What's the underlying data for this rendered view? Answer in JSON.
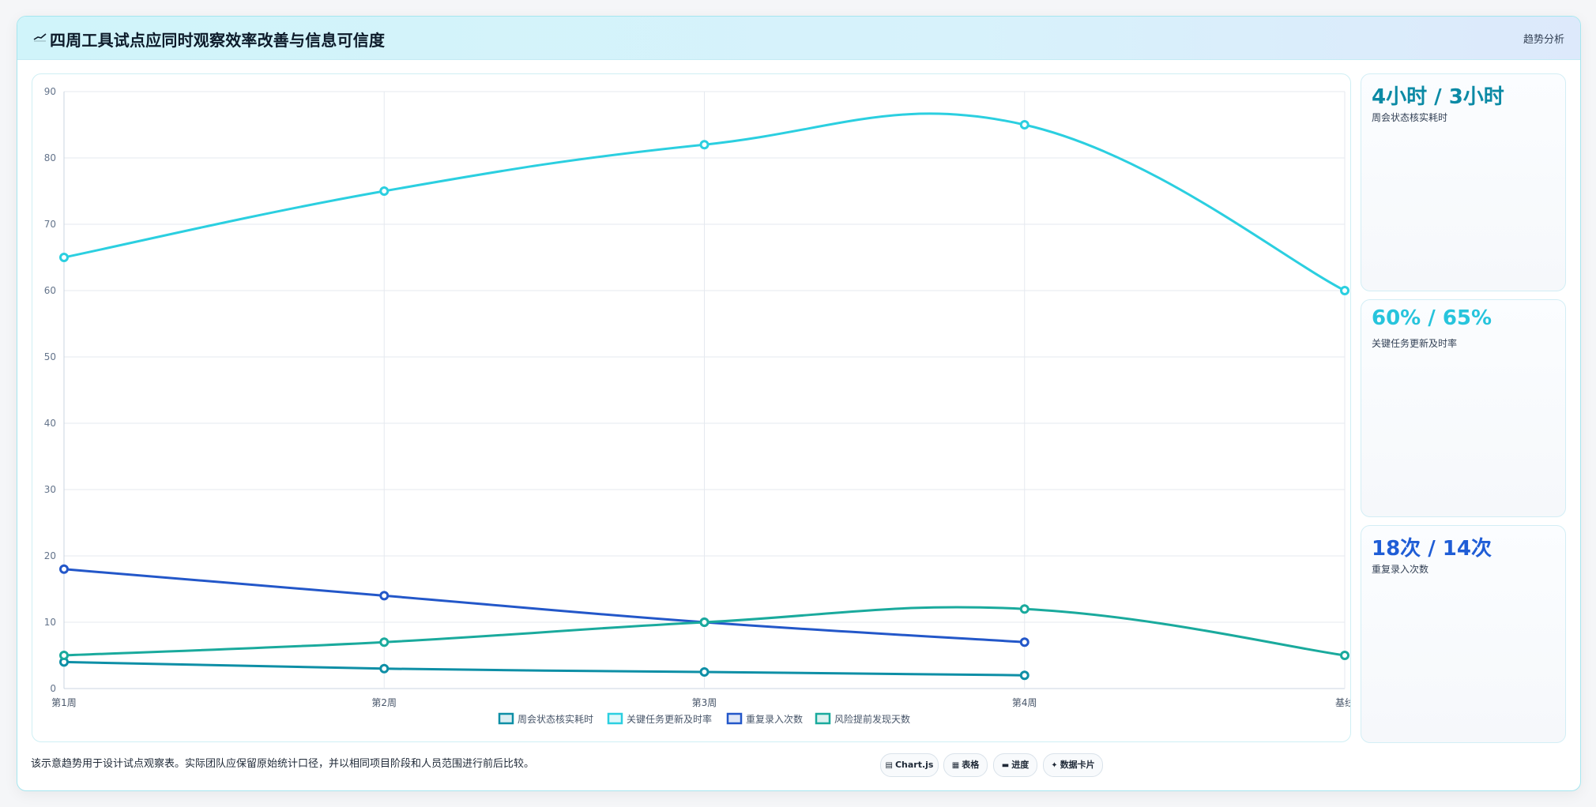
{
  "header": {
    "title": "四周工具试点应同时观察效率改善与信息可信度",
    "tag": "趋势分析"
  },
  "chart_data": {
    "type": "line",
    "categories": [
      "第1周",
      "第2周",
      "第3周",
      "第4周",
      "基线"
    ],
    "ylim": [
      0,
      90
    ],
    "yticks": [
      0,
      10,
      20,
      30,
      40,
      50,
      60,
      70,
      80,
      90
    ],
    "grid": true,
    "legend_position": "bottom",
    "series": [
      {
        "name": "周会状态核实耗时",
        "color": "#0e8fa6",
        "values": [
          4,
          3,
          2.5,
          2,
          null
        ]
      },
      {
        "name": "关键任务更新及时率",
        "color": "#2bcfe0",
        "values": [
          65,
          75,
          82,
          85,
          60
        ]
      },
      {
        "name": "重复录入次数",
        "color": "#2357c9",
        "values": [
          18,
          14,
          10,
          7,
          null
        ]
      },
      {
        "name": "风险提前发现天数",
        "color": "#1aaa9d",
        "values": [
          5,
          7,
          10,
          12,
          5
        ]
      }
    ]
  },
  "metrics": [
    {
      "value": "4小时 / 3小时",
      "label": "周会状态核实耗时",
      "color": "#0b8aa5"
    },
    {
      "value": "60% / 65%",
      "label": "关键任务更新及时率",
      "color": "#27c4dc"
    },
    {
      "value": "18次 / 14次",
      "label": "重复录入次数",
      "color": "#1f5dd6"
    }
  ],
  "footnote": "该示意趋势用于设计试点观察表。实际团队应保留原始统计口径，并以相同项目阶段和人员范围进行前后比较。",
  "pills": [
    {
      "icon": "chart-icon",
      "glyph": "▤",
      "label": "Chart.js"
    },
    {
      "icon": "table-icon",
      "glyph": "▦",
      "label": "表格"
    },
    {
      "icon": "progress-icon",
      "glyph": "▬",
      "label": "进度"
    },
    {
      "icon": "sparkle-icon",
      "glyph": "✦",
      "label": "数据卡片"
    }
  ]
}
